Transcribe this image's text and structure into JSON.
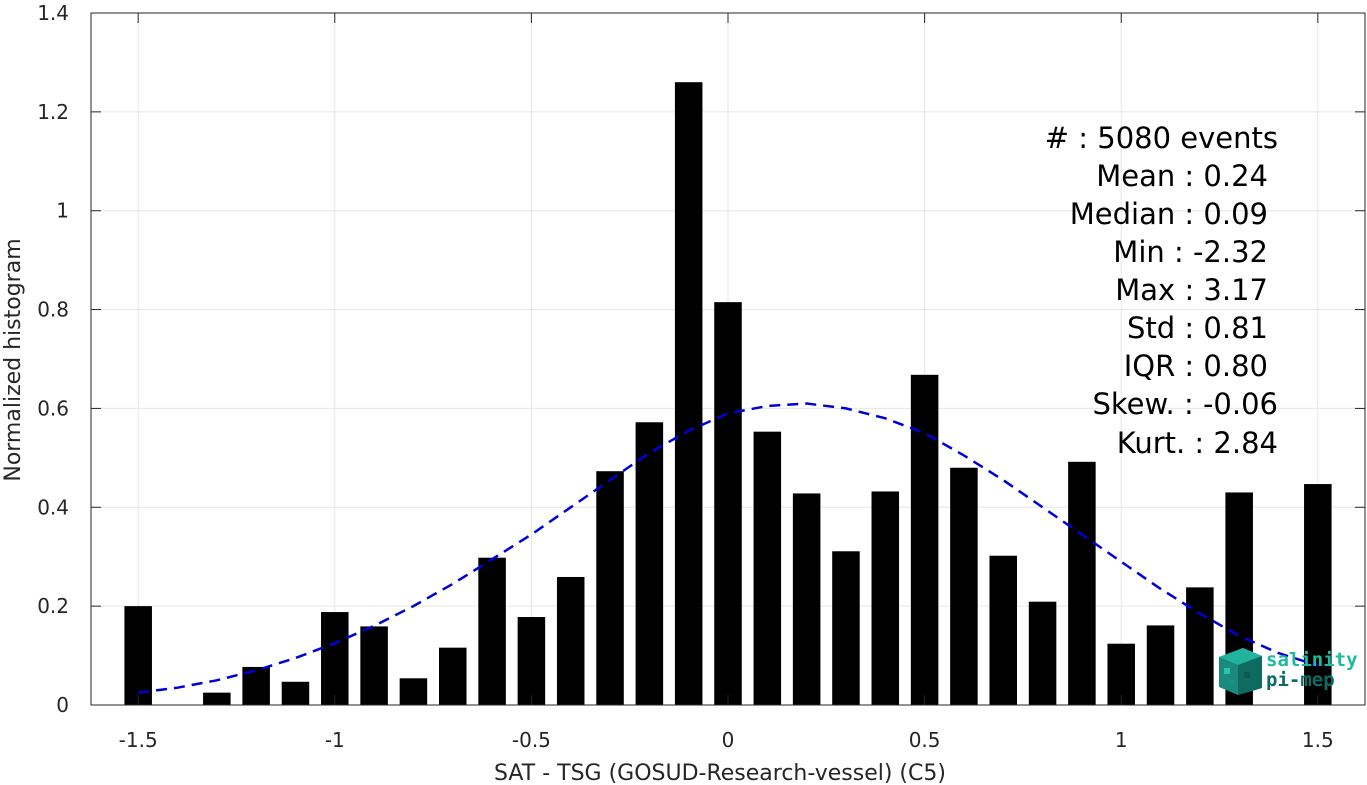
{
  "chart_data": {
    "type": "bar",
    "xlabel": "SAT - TSG (GOSUD-Research-vessel) (C5)",
    "ylabel": "Normalized histogram",
    "xlim": [
      -1.62,
      1.62
    ],
    "ylim": [
      0,
      1.4
    ],
    "grid": true,
    "x_ticks": [
      -1.5,
      -1,
      -0.5,
      0,
      0.5,
      1,
      1.5
    ],
    "x_tick_labels": [
      "-1.5",
      "-1",
      "-0.5",
      "0",
      "0.5",
      "1",
      "1.5"
    ],
    "y_ticks": [
      0,
      0.2,
      0.4,
      0.6,
      0.8,
      1,
      1.2,
      1.4
    ],
    "y_tick_labels": [
      "0",
      "0.2",
      "0.4",
      "0.6",
      "0.8",
      "1",
      "1.2",
      "1.4"
    ],
    "bar_width": 0.07,
    "bar_color": "#000000",
    "bars": [
      {
        "x": -1.5,
        "y": 0.2
      },
      {
        "x": -1.3,
        "y": 0.025
      },
      {
        "x": -1.2,
        "y": 0.077
      },
      {
        "x": -1.1,
        "y": 0.047
      },
      {
        "x": -1.0,
        "y": 0.188
      },
      {
        "x": -0.9,
        "y": 0.159
      },
      {
        "x": -0.8,
        "y": 0.054
      },
      {
        "x": -0.7,
        "y": 0.116
      },
      {
        "x": -0.6,
        "y": 0.298
      },
      {
        "x": -0.5,
        "y": 0.178
      },
      {
        "x": -0.4,
        "y": 0.259
      },
      {
        "x": -0.3,
        "y": 0.473
      },
      {
        "x": -0.2,
        "y": 0.572
      },
      {
        "x": -0.1,
        "y": 1.26
      },
      {
        "x": 0.0,
        "y": 0.815
      },
      {
        "x": 0.1,
        "y": 0.553
      },
      {
        "x": 0.2,
        "y": 0.428
      },
      {
        "x": 0.3,
        "y": 0.311
      },
      {
        "x": 0.4,
        "y": 0.432
      },
      {
        "x": 0.5,
        "y": 0.668
      },
      {
        "x": 0.6,
        "y": 0.48
      },
      {
        "x": 0.7,
        "y": 0.302
      },
      {
        "x": 0.8,
        "y": 0.209
      },
      {
        "x": 0.9,
        "y": 0.492
      },
      {
        "x": 1.0,
        "y": 0.124
      },
      {
        "x": 1.1,
        "y": 0.161
      },
      {
        "x": 1.2,
        "y": 0.238
      },
      {
        "x": 1.3,
        "y": 0.43
      },
      {
        "x": 1.5,
        "y": 0.447
      }
    ],
    "fit_curve": {
      "style": "dashed",
      "color": "#0000dd",
      "x": [
        -1.5,
        -1.4,
        -1.3,
        -1.2,
        -1.1,
        -1.0,
        -0.9,
        -0.8,
        -0.7,
        -0.6,
        -0.5,
        -0.4,
        -0.3,
        -0.2,
        -0.1,
        0.0,
        0.1,
        0.2,
        0.3,
        0.4,
        0.5,
        0.6,
        0.7,
        0.8,
        0.9,
        1.0,
        1.1,
        1.2,
        1.3,
        1.4,
        1.5
      ],
      "y": [
        0.025,
        0.035,
        0.05,
        0.07,
        0.095,
        0.125,
        0.16,
        0.2,
        0.245,
        0.295,
        0.345,
        0.4,
        0.455,
        0.51,
        0.555,
        0.59,
        0.605,
        0.61,
        0.6,
        0.58,
        0.55,
        0.505,
        0.455,
        0.4,
        0.345,
        0.29,
        0.235,
        0.185,
        0.14,
        0.105,
        0.08
      ]
    },
    "stats": [
      {
        "label": "#  : 5080 events"
      },
      {
        "label": "Mean : 0.24"
      },
      {
        "label": "Median : 0.09"
      },
      {
        "label": "Min : -2.32"
      },
      {
        "label": "Max : 3.17"
      },
      {
        "label": "Std : 0.81"
      },
      {
        "label": "IQR : 0.80"
      },
      {
        "label": "Skew. : -0.06"
      },
      {
        "label": "Kurt. : 2.84"
      }
    ]
  },
  "logo": {
    "line1": "salinity",
    "line2": "pi-mep",
    "color1": "#1abc9c",
    "color2": "#0e6b63"
  }
}
